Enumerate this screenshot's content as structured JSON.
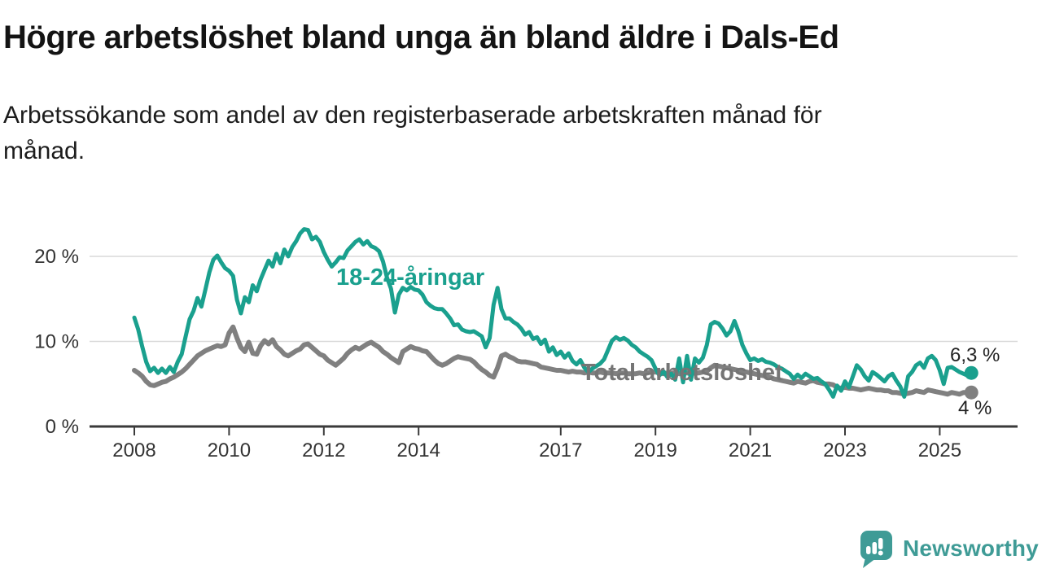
{
  "header": {
    "title": "Högre arbetslöshet bland unga än bland äldre i Dals-Ed",
    "subtitle_lines": [
      "Arbetssökande som andel av den registerbaserade arbetskraften månad för",
      "månad."
    ]
  },
  "colors": {
    "youth_teal": "#1aa08e",
    "total_gray": "#808080",
    "total_label_gray": "#757575",
    "grid": "#d9d9d9",
    "axis": "#3a3a3a",
    "text_dark": "#222222",
    "logo_teal": "#3f9b96"
  },
  "chart_data": {
    "type": "line",
    "title": "Högre arbetslöshet bland unga än bland äldre i Dals-Ed",
    "subtitle": "Arbetssökande som andel av den registerbaserade arbetskraften månad för månad.",
    "x_unit": "month",
    "x_start": "2008-01",
    "x_end": "2025-09",
    "x_tick_labels": [
      "2008",
      "2010",
      "2012",
      "2014",
      "2017",
      "2019",
      "2021",
      "2023",
      "2025"
    ],
    "x_tick_years": [
      2008,
      2010,
      2012,
      2014,
      2017,
      2019,
      2021,
      2023,
      2025
    ],
    "y_ticks": [
      {
        "value": 0,
        "label": "0 %"
      },
      {
        "value": 10,
        "label": "10 %"
      },
      {
        "value": 20,
        "label": "20 %"
      }
    ],
    "ylim": [
      0,
      24.5
    ],
    "grid": "horizontal-only",
    "legend": "inline-labels",
    "series": [
      {
        "name": "18-24-åringar",
        "color": "#1aa08e",
        "end_label": "6,3 %",
        "last_value": 6.3,
        "values": [
          12.8,
          11.4,
          9.4,
          7.6,
          6.5,
          6.9,
          6.3,
          6.8,
          6.3,
          7.0,
          6.4,
          7.6,
          8.5,
          10.6,
          12.6,
          13.6,
          15.1,
          14.1,
          16.1,
          18.1,
          19.6,
          20.1,
          19.3,
          18.6,
          18.3,
          17.7,
          14.9,
          13.3,
          15.2,
          14.6,
          16.6,
          15.9,
          17.3,
          18.4,
          19.5,
          18.8,
          20.3,
          19.2,
          20.8,
          20.0,
          21.1,
          21.8,
          22.7,
          23.2,
          23.1,
          22.0,
          22.3,
          21.7,
          20.5,
          19.6,
          18.8,
          19.3,
          19.9,
          19.8,
          20.7,
          21.2,
          21.7,
          22.0,
          21.4,
          21.8,
          21.2,
          21.0,
          20.6,
          19.4,
          17.5,
          16.2,
          13.4,
          15.5,
          16.3,
          16.0,
          16.4,
          16.1,
          16.0,
          15.5,
          14.6,
          14.2,
          13.9,
          13.8,
          13.8,
          13.3,
          12.7,
          11.9,
          12.0,
          11.4,
          11.2,
          11.1,
          11.2,
          10.9,
          10.6,
          9.3,
          10.4,
          14.3,
          16.3,
          13.8,
          12.7,
          12.7,
          12.3,
          12.0,
          11.5,
          10.8,
          11.1,
          10.3,
          10.5,
          9.7,
          10.2,
          8.8,
          9.3,
          8.4,
          8.8,
          8.1,
          8.6,
          7.7,
          7.3,
          7.8,
          6.9,
          6.4,
          6.8,
          7.1,
          7.4,
          7.9,
          9.0,
          10.1,
          10.5,
          10.2,
          10.4,
          10.1,
          9.6,
          9.3,
          8.8,
          8.5,
          8.2,
          7.8,
          6.8,
          6.0,
          6.5,
          5.8,
          6.2,
          5.5,
          8.0,
          5.2,
          8.3,
          5.5,
          8.0,
          7.5,
          8.1,
          9.6,
          12.0,
          12.3,
          12.1,
          11.5,
          10.7,
          11.2,
          12.4,
          11.2,
          9.6,
          8.6,
          7.8,
          8.0,
          7.7,
          7.9,
          7.6,
          7.5,
          7.3,
          7.0,
          6.8,
          6.5,
          6.2,
          5.6,
          6.1,
          5.7,
          6.2,
          5.9,
          5.6,
          5.7,
          5.3,
          5.0,
          4.3,
          3.5,
          4.8,
          4.2,
          5.3,
          4.6,
          5.9,
          7.2,
          6.7,
          5.9,
          5.4,
          6.4,
          6.1,
          5.7,
          5.3,
          5.9,
          6.2,
          5.4,
          4.7,
          3.5,
          5.9,
          6.4,
          7.2,
          7.5,
          6.9,
          8.0,
          8.3,
          7.8,
          6.6,
          5.0,
          6.9,
          7.0,
          6.7,
          6.4,
          6.2,
          6.0,
          6.3
        ]
      },
      {
        "name": "Total arbetslöshet",
        "color": "#808080",
        "end_label": "4 %",
        "last_value": 4.0,
        "values": [
          6.6,
          6.3,
          5.9,
          5.3,
          4.9,
          4.8,
          5.0,
          5.2,
          5.3,
          5.6,
          5.8,
          6.1,
          6.4,
          6.8,
          7.3,
          7.8,
          8.3,
          8.6,
          8.9,
          9.1,
          9.3,
          9.5,
          9.4,
          9.6,
          11.0,
          11.7,
          10.4,
          9.3,
          8.8,
          9.9,
          8.6,
          8.5,
          9.5,
          10.1,
          9.7,
          10.2,
          9.4,
          9.0,
          8.5,
          8.3,
          8.6,
          8.9,
          9.1,
          9.6,
          9.7,
          9.3,
          8.9,
          8.5,
          8.3,
          7.8,
          7.5,
          7.2,
          7.6,
          8.0,
          8.6,
          9.0,
          9.3,
          9.1,
          9.4,
          9.7,
          9.9,
          9.6,
          9.3,
          8.8,
          8.5,
          8.1,
          7.8,
          7.5,
          8.8,
          9.1,
          9.4,
          9.2,
          9.1,
          8.9,
          8.8,
          8.3,
          7.8,
          7.4,
          7.2,
          7.4,
          7.7,
          8.0,
          8.2,
          8.1,
          8.0,
          7.9,
          7.6,
          7.1,
          6.7,
          6.4,
          6.0,
          5.8,
          6.9,
          8.3,
          8.5,
          8.2,
          8.0,
          7.7,
          7.6,
          7.6,
          7.5,
          7.4,
          7.3,
          7.0,
          6.9,
          6.8,
          6.7,
          6.6,
          6.6,
          6.5,
          6.4,
          6.5,
          6.4,
          6.4,
          6.3,
          6.4,
          6.3,
          6.3,
          6.4,
          6.3,
          6.3,
          6.3,
          6.2,
          6.3,
          6.3,
          6.2,
          6.2,
          6.2,
          6.3,
          6.2,
          6.3,
          6.4,
          6.4,
          6.3,
          6.2,
          6.3,
          6.3,
          6.3,
          6.2,
          6.3,
          6.3,
          6.2,
          6.3,
          6.3,
          6.4,
          6.5,
          6.9,
          7.2,
          7.1,
          7.0,
          6.9,
          6.8,
          6.7,
          6.6,
          6.5,
          6.4,
          6.3,
          6.2,
          6.1,
          6.0,
          5.9,
          5.8,
          5.6,
          5.5,
          5.4,
          5.3,
          5.2,
          5.1,
          5.3,
          5.2,
          5.1,
          5.3,
          5.4,
          5.2,
          5.1,
          5.0,
          5.0,
          4.9,
          4.6,
          4.5,
          4.6,
          4.5,
          4.5,
          4.4,
          4.3,
          4.4,
          4.5,
          4.4,
          4.3,
          4.3,
          4.2,
          4.2,
          4.0,
          4.0,
          3.9,
          3.8,
          3.9,
          4.0,
          4.2,
          4.1,
          4.0,
          4.3,
          4.2,
          4.1,
          4.0,
          3.9,
          3.8,
          4.0,
          3.9,
          3.8,
          4.0,
          4.0,
          4.0
        ]
      }
    ]
  },
  "logo": {
    "text": "Newsworthy"
  }
}
